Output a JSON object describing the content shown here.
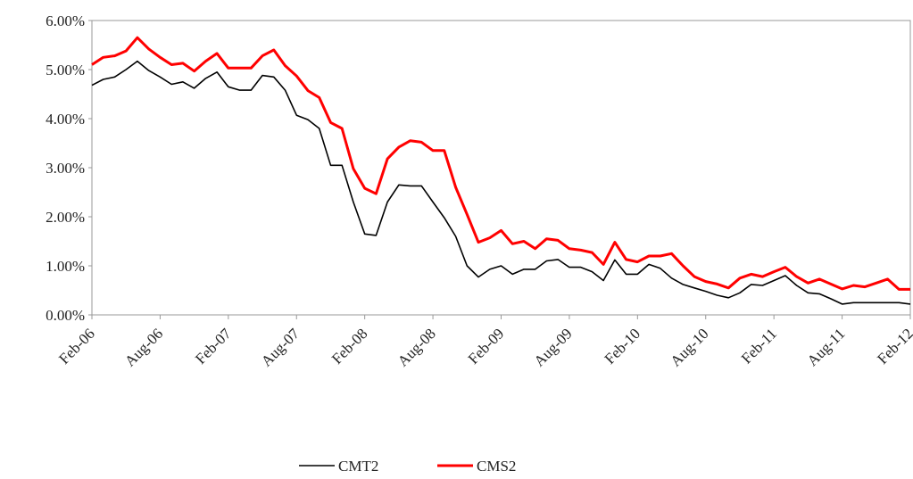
{
  "chart_data": {
    "type": "line",
    "categories": [
      "Feb-06",
      null,
      null,
      null,
      null,
      null,
      "Aug-06",
      null,
      null,
      null,
      null,
      null,
      "Feb-07",
      null,
      null,
      null,
      null,
      null,
      "Aug-07",
      null,
      null,
      null,
      null,
      null,
      "Feb-08",
      null,
      null,
      null,
      null,
      null,
      "Aug-08",
      null,
      null,
      null,
      null,
      null,
      "Feb-09",
      null,
      null,
      null,
      null,
      null,
      "Aug-09",
      null,
      null,
      null,
      null,
      null,
      "Feb-10",
      null,
      null,
      null,
      null,
      null,
      "Aug-10",
      null,
      null,
      null,
      null,
      null,
      "Feb-11",
      null,
      null,
      null,
      null,
      null,
      "Aug-11",
      null,
      null,
      null,
      null,
      null,
      "Feb-12"
    ],
    "series": [
      {
        "name": "CMT2",
        "color": "#000000",
        "values": [
          4.68,
          4.8,
          4.85,
          5.0,
          5.17,
          4.98,
          4.85,
          4.7,
          4.75,
          4.62,
          4.82,
          4.95,
          4.65,
          4.58,
          4.58,
          4.88,
          4.85,
          4.58,
          4.07,
          3.98,
          3.8,
          3.05,
          3.05,
          2.3,
          1.65,
          1.62,
          2.3,
          2.65,
          2.63,
          2.63,
          2.3,
          1.98,
          1.6,
          1.0,
          0.77,
          0.93,
          1.0,
          0.83,
          0.93,
          0.93,
          1.1,
          1.13,
          0.97,
          0.97,
          0.88,
          0.7,
          1.12,
          0.83,
          0.83,
          1.03,
          0.95,
          0.75,
          0.62,
          0.55,
          0.48,
          0.4,
          0.35,
          0.45,
          0.62,
          0.6,
          0.7,
          0.8,
          0.6,
          0.45,
          0.43,
          0.33,
          0.22,
          0.25,
          0.25,
          0.25,
          0.25,
          0.25,
          0.22
        ]
      },
      {
        "name": "CMS2",
        "color": "#ff0000",
        "values": [
          5.1,
          5.25,
          5.28,
          5.38,
          5.65,
          5.42,
          5.25,
          5.1,
          5.13,
          4.97,
          5.17,
          5.33,
          5.03,
          5.03,
          5.03,
          5.28,
          5.4,
          5.08,
          4.87,
          4.57,
          4.43,
          3.92,
          3.8,
          2.98,
          2.58,
          2.47,
          3.18,
          3.42,
          3.55,
          3.52,
          3.35,
          3.35,
          2.6,
          2.05,
          1.48,
          1.57,
          1.72,
          1.45,
          1.5,
          1.35,
          1.55,
          1.52,
          1.35,
          1.32,
          1.27,
          1.03,
          1.48,
          1.13,
          1.08,
          1.2,
          1.2,
          1.25,
          1.0,
          0.78,
          0.68,
          0.63,
          0.55,
          0.75,
          0.83,
          0.78,
          0.88,
          0.97,
          0.78,
          0.65,
          0.73,
          0.63,
          0.53,
          0.6,
          0.57,
          0.65,
          0.73,
          0.52,
          0.52
        ]
      }
    ],
    "ylim": [
      0,
      6
    ],
    "yticks": [
      {
        "value": 0,
        "label": "0.00%"
      },
      {
        "value": 1,
        "label": "1.00%"
      },
      {
        "value": 2,
        "label": "2.00%"
      },
      {
        "value": 3,
        "label": "3.00%"
      },
      {
        "value": 4,
        "label": "4.00%"
      },
      {
        "value": 5,
        "label": "5.00%"
      },
      {
        "value": 6,
        "label": "6.00%"
      }
    ],
    "grid": false,
    "legend": "bottom"
  }
}
